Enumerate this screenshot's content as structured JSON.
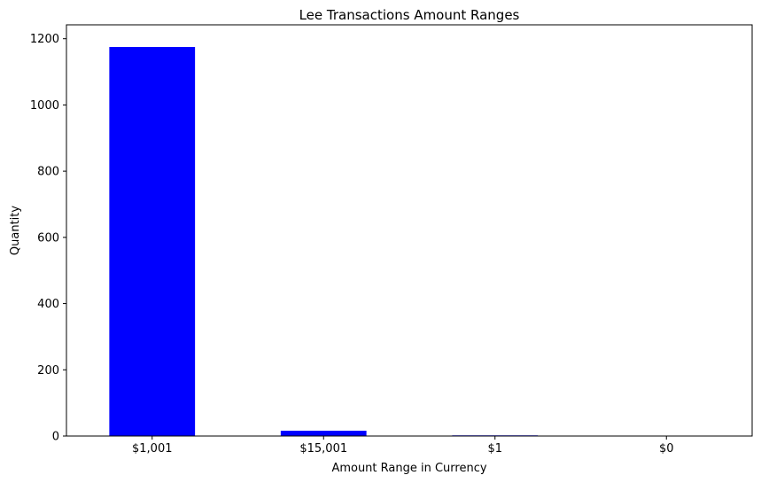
{
  "chart_data": {
    "type": "bar",
    "title": "Lee Transactions Amount Ranges",
    "xlabel": "Amount Range in Currency",
    "ylabel": "Quantity",
    "categories": [
      "$1,001",
      "$15,001",
      "$1",
      "$0"
    ],
    "values": [
      1175,
      16,
      2,
      1
    ],
    "ylim": [
      0,
      1200
    ],
    "yticks": [
      {
        "value": 0,
        "label": "0"
      },
      {
        "value": 200,
        "label": "200"
      },
      {
        "value": 400,
        "label": "400"
      },
      {
        "value": 600,
        "label": "600"
      },
      {
        "value": 800,
        "label": "800"
      },
      {
        "value": 1000,
        "label": "1000"
      },
      {
        "value": 1200,
        "label": "1200"
      }
    ],
    "bar_color": "#0000ff",
    "grid": false,
    "legend": "none"
  }
}
